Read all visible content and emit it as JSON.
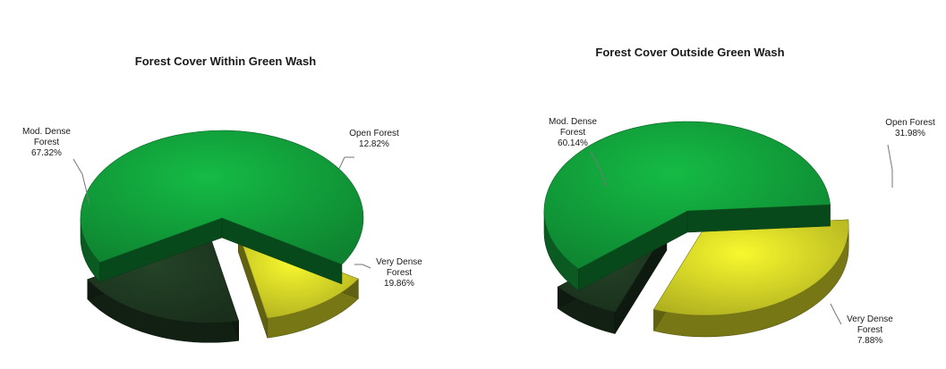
{
  "chart_data": [
    {
      "type": "pie",
      "title": "Forest Cover Within Green Wash",
      "slices": [
        {
          "label_lines": [
            "Open Forest",
            "12.82%"
          ],
          "value": 12.82,
          "color": "#d8d828"
        },
        {
          "label_lines": [
            "Very Dense",
            "Forest",
            "19.86%"
          ],
          "value": 19.86,
          "color": "#1f3a22"
        },
        {
          "label_lines": [
            "Mod. Dense",
            "Forest",
            "67.32%"
          ],
          "value": 67.32,
          "color": "#12a33c"
        }
      ]
    },
    {
      "type": "pie",
      "title": "Forest Cover Outside Green Wash",
      "slices": [
        {
          "label_lines": [
            "Open Forest",
            "31.98%"
          ],
          "value": 31.98,
          "color": "#d8d828"
        },
        {
          "label_lines": [
            "Very Dense",
            "Forest",
            "7.88%"
          ],
          "value": 7.88,
          "color": "#1f3a22"
        },
        {
          "label_lines": [
            "Mod. Dense",
            "Forest",
            "60.14%"
          ],
          "value": 60.14,
          "color": "#12a33c"
        }
      ]
    }
  ]
}
